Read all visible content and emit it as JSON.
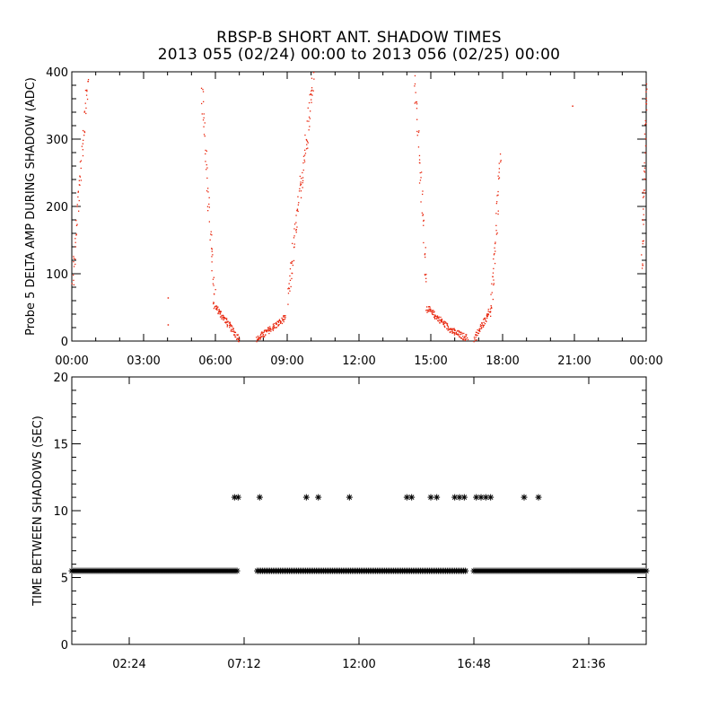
{
  "title": "RBSP-B SHORT ANT. SHADOW TIMES",
  "subtitle": "2013 055 (02/24) 00:00 to 2013 056 (02/25) 00:00",
  "colors": {
    "top_points": "#e8250c",
    "bottom_points": "#000000",
    "axes": "#000000"
  },
  "chart_data": [
    {
      "type": "scatter",
      "ylabel": "Probe 5 DELTA AMP DURING SHADOW (ADC)",
      "xlabel": "",
      "xlim": [
        "00:00",
        "24:00"
      ],
      "ylim": [
        0,
        400
      ],
      "xticks": [
        "00:00",
        "03:00",
        "06:00",
        "09:00",
        "12:00",
        "15:00",
        "18:00",
        "21:00",
        "00:00"
      ],
      "yticks": [
        0,
        100,
        200,
        300,
        400
      ],
      "point_color": "#e8250c",
      "segments": [
        {
          "name": "s1",
          "from_hour": 0.0,
          "to_hour": 0.65,
          "from_y": 80,
          "to_y": 400
        },
        {
          "name": "s2",
          "from_hour": 5.4,
          "to_hour": 5.95,
          "from_y": 380,
          "to_y": 60
        },
        {
          "name": "s3",
          "from_hour": 5.9,
          "to_hour": 7.0,
          "from_y": 55,
          "to_y": 3
        },
        {
          "name": "s4",
          "from_hour": 7.7,
          "to_hour": 8.9,
          "from_y": 3,
          "to_y": 35
        },
        {
          "name": "s5",
          "from_hour": 9.0,
          "to_hour": 10.1,
          "from_y": 60,
          "to_y": 400
        },
        {
          "name": "s6",
          "from_hour": 14.3,
          "to_hour": 14.8,
          "from_y": 400,
          "to_y": 90
        },
        {
          "name": "s7",
          "from_hour": 14.8,
          "to_hour": 15.9,
          "from_y": 50,
          "to_y": 15
        },
        {
          "name": "s8",
          "from_hour": 15.9,
          "to_hour": 16.5,
          "from_y": 15,
          "to_y": 5
        },
        {
          "name": "s9",
          "from_hour": 16.8,
          "to_hour": 17.5,
          "from_y": 3,
          "to_y": 50
        },
        {
          "name": "s10",
          "from_hour": 17.5,
          "to_hour": 17.9,
          "from_y": 50,
          "to_y": 270
        },
        {
          "name": "s11",
          "from_hour": 23.8,
          "to_hour": 24.0,
          "from_y": 100,
          "to_y": 380
        }
      ],
      "isolated_points": [
        {
          "x": 4.0,
          "y": 65
        },
        {
          "x": 4.0,
          "y": 25
        },
        {
          "x": 20.9,
          "y": 350
        }
      ]
    },
    {
      "type": "scatter",
      "ylabel": "TIME BETWEEN SHADOWS (SEC)",
      "xlabel": "",
      "xlim": [
        0,
        24
      ],
      "ylim": [
        0,
        20
      ],
      "xticks": [
        "02:24",
        "07:12",
        "12:00",
        "16:48",
        "21:36"
      ],
      "yticks": [
        0,
        5,
        10,
        15,
        20
      ],
      "marker": "asterisk",
      "point_color": "#000000",
      "baseline_value": 5.5,
      "baseline_ranges": [
        [
          0.0,
          6.9
        ],
        [
          7.75,
          16.45
        ],
        [
          16.8,
          24.0
        ]
      ],
      "points_at_11": {
        "y": 11,
        "x": [
          6.8,
          6.95,
          7.85,
          9.8,
          10.3,
          11.6,
          14.0,
          14.2,
          15.0,
          15.25,
          16.0,
          16.2,
          16.4,
          16.9,
          17.1,
          17.3,
          17.5,
          18.9,
          19.5
        ]
      }
    }
  ]
}
